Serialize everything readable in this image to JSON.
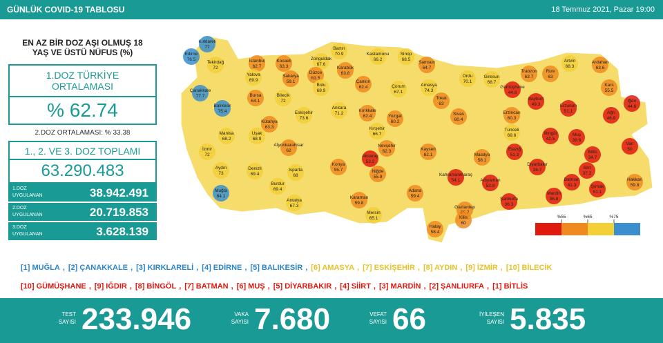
{
  "header": {
    "title": "GÜNLÜK COVID-19 TABLOSU",
    "date": "18 Temmuz 2021, Pazar 19:00"
  },
  "left_panel": {
    "title": "EN AZ BİR DOZ AŞI OLMUŞ 18 YAŞ VE ÜSTÜ NÜFUS (%)",
    "dose1_label": "1.DOZ TÜRKİYE ORTALAMASI",
    "dose1_value": "% 62.74",
    "dose2_text": "2.DOZ ORTALAMASI: % 33.38",
    "total_label": "1., 2. VE 3. DOZ TOPLAMI",
    "total_value": "63.290.483",
    "rows": [
      {
        "label": "1.DOZ UYGULANAN",
        "value": "38.942.491"
      },
      {
        "label": "2.DOZ UYGULANAN",
        "value": "20.719.853"
      },
      {
        "label": "3.DOZ UYGULANAN",
        "value": "3.628.139"
      }
    ]
  },
  "map": {
    "colors": [
      "#e0190f",
      "#ee8a1f",
      "#f3cf38",
      "#3a8fcc"
    ],
    "legend_ticks": [
      {
        "value": 55,
        "label": "%55"
      },
      {
        "value": 65,
        "label": "%65"
      },
      {
        "value": 75,
        "label": "%75"
      }
    ],
    "provinces": [
      {
        "name": "Kırklareli",
        "value": 77.0
      },
      {
        "name": "Edirne",
        "value": 76.5
      },
      {
        "name": "Tekirdağ",
        "value": 72.0
      },
      {
        "name": "İstanbul",
        "value": 62.7
      },
      {
        "name": "Kocaeli",
        "value": 63.3
      },
      {
        "name": "Zonguldak",
        "value": 67.6
      },
      {
        "name": "Bartın",
        "value": 70.9
      },
      {
        "name": "Kastamonu",
        "value": 66.2
      },
      {
        "name": "Sinop",
        "value": 68.5
      },
      {
        "name": "Samsun",
        "value": 64.7
      },
      {
        "name": "Karabük",
        "value": 63.8
      },
      {
        "name": "Düzce",
        "value": 61.5
      },
      {
        "name": "Sakarya",
        "value": 59.1
      },
      {
        "name": "Yalova",
        "value": 69.9
      },
      {
        "name": "Çanakkale",
        "value": 77.7
      },
      {
        "name": "Bursa",
        "value": 64.1
      },
      {
        "name": "Bilecik",
        "value": 72.0
      },
      {
        "name": "Bolu",
        "value": 68.9
      },
      {
        "name": "Çankırı",
        "value": 62.4
      },
      {
        "name": "Çorum",
        "value": 67.1
      },
      {
        "name": "Amasya",
        "value": 74.3
      },
      {
        "name": "Ordu",
        "value": 70.1
      },
      {
        "name": "Giresun",
        "value": 68.7
      },
      {
        "name": "Trabzon",
        "value": 63.7
      },
      {
        "name": "Rize",
        "value": 63.0
      },
      {
        "name": "Artvin",
        "value": 68.3
      },
      {
        "name": "Ardahan",
        "value": 63.6
      },
      {
        "name": "Gümüşhane",
        "value": 44.8
      },
      {
        "name": "Bayburt",
        "value": 49.3
      },
      {
        "name": "Kars",
        "value": 55.5
      },
      {
        "name": "Erzurum",
        "value": 51.1
      },
      {
        "name": "Iğdır",
        "value": 44.6
      },
      {
        "name": "Ağrı",
        "value": 46.9
      },
      {
        "name": "Balıkesir",
        "value": 75.4
      },
      {
        "name": "Eskişehir",
        "value": 73.6
      },
      {
        "name": "Ankara",
        "value": 71.2
      },
      {
        "name": "Kırıkkale",
        "value": 62.4
      },
      {
        "name": "Tokat",
        "value": 63
      },
      {
        "name": "Yozgat",
        "value": 60.2
      },
      {
        "name": "Sivas",
        "value": 60.4
      },
      {
        "name": "Erzincan",
        "value": 60.3
      },
      {
        "name": "Kütahya",
        "value": 63.3
      },
      {
        "name": "Manisa",
        "value": 68.2
      },
      {
        "name": "Uşak",
        "value": 68.9
      },
      {
        "name": "Afyonkarahisar",
        "value": 62.0
      },
      {
        "name": "Kırşehir",
        "value": 66.7
      },
      {
        "name": "Nevşehir",
        "value": 62.3
      },
      {
        "name": "Aksaray",
        "value": 53.2
      },
      {
        "name": "Kayseri",
        "value": 62.1
      },
      {
        "name": "Tunceli",
        "value": 69.6
      },
      {
        "name": "Bingöl",
        "value": 42.5
      },
      {
        "name": "Muş",
        "value": 39.6
      },
      {
        "name": "Elazığ",
        "value": 51.3
      },
      {
        "name": "Malatya",
        "value": 58.1
      },
      {
        "name": "Bitlis",
        "value": 34.7
      },
      {
        "name": "Van",
        "value": 50.0
      },
      {
        "name": "İzmir",
        "value": 72.0
      },
      {
        "name": "Aydın",
        "value": 73.0
      },
      {
        "name": "Denizli",
        "value": 69.4
      },
      {
        "name": "Isparta",
        "value": 68.0
      },
      {
        "name": "Konya",
        "value": 55.7
      },
      {
        "name": "Niğde",
        "value": 55.9
      },
      {
        "name": "Diyarbakır",
        "value": 38.7
      },
      {
        "name": "Siirt",
        "value": 37.2
      },
      {
        "name": "Batman",
        "value": 41.3
      },
      {
        "name": "Hakkari",
        "value": 59.8
      },
      {
        "name": "Şırnak",
        "value": 51.1
      },
      {
        "name": "Muğla",
        "value": 84.1
      },
      {
        "name": "Burdur",
        "value": 69.4
      },
      {
        "name": "Antalya",
        "value": 67.3
      },
      {
        "name": "Kahramanmaraş",
        "value": 54.1
      },
      {
        "name": "Adıyaman",
        "value": 53.8
      },
      {
        "name": "Adana",
        "value": 59.4
      },
      {
        "name": "Karaman",
        "value": 59.8
      },
      {
        "name": "Şanlıurfa",
        "value": 36.3
      },
      {
        "name": "Mardin",
        "value": 36.8
      },
      {
        "name": "Gaziantep",
        "value": 55.7
      },
      {
        "name": "Mersin",
        "value": 65.1
      },
      {
        "name": "Kilis",
        "value": 60.0
      },
      {
        "name": "Hatay",
        "value": 58.4
      }
    ]
  },
  "rankings": {
    "separator": ",",
    "top": [
      "[1] MUĞLA",
      "[2] ÇANAKKALE",
      "[3] KIRKLARELİ",
      "[4] EDİRNE",
      "[5] BALIKESİR",
      "[6] AMASYA",
      "[7] ESKİŞEHİR",
      "[8] AYDIN",
      "[9] İZMİR",
      "[10] BİLECİK"
    ],
    "bottom": [
      "[10] GÜMÜŞHANE",
      "[9] IĞDIR",
      "[8] BİNGÖL",
      "[7] BATMAN",
      "[6] MUŞ",
      "[5] DİYARBAKIR",
      "[4] SİİRT",
      "[3] MARDİN",
      "[2] ŞANLIURFA",
      "[1] BİTLİS"
    ]
  },
  "stats": [
    {
      "label": "TEST SAYISI",
      "value": "233.946"
    },
    {
      "label": "VAKA SAYISI",
      "value": "7.680"
    },
    {
      "label": "VEFAT SAYISI",
      "value": "66"
    },
    {
      "label": "İYİLEŞEN SAYISI",
      "value": "5.835"
    }
  ]
}
